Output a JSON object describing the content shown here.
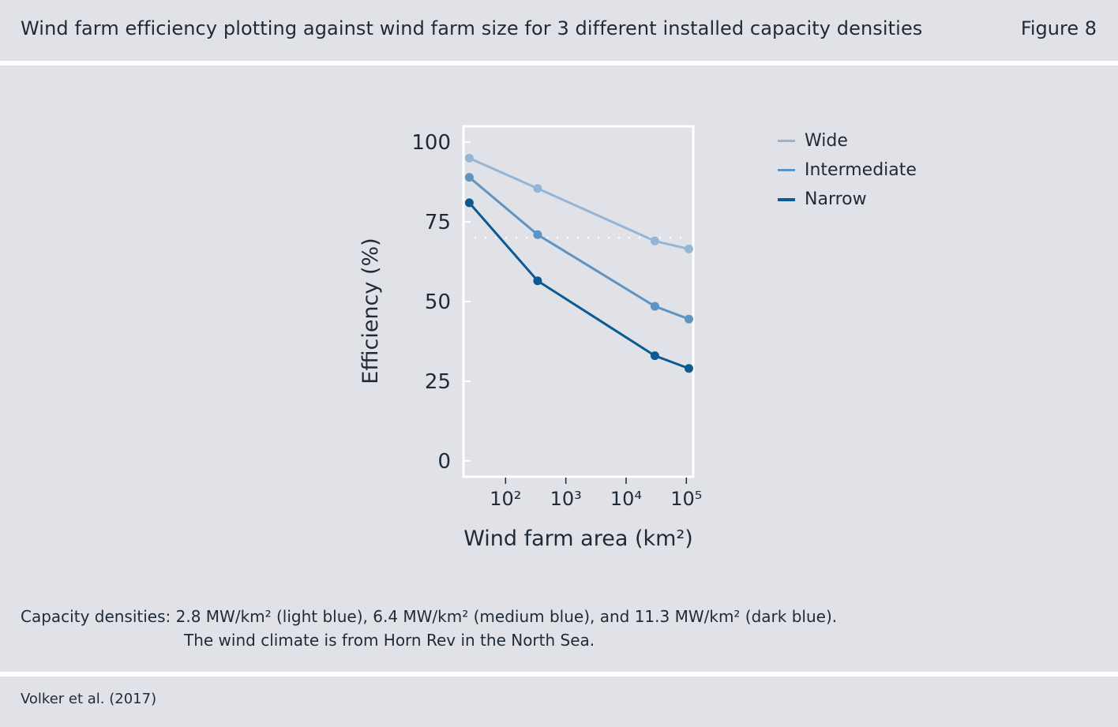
{
  "header": {
    "title": "Wind farm efficiency plotting against wind farm size for 3 different installed capacity densities",
    "figure_label": "Figure 8"
  },
  "caption": {
    "line1": "Capacity densities: 2.8 MW/km² (light blue), 6.4 MW/km² (medium blue), and 11.3 MW/km² (dark blue).",
    "line2": "The wind climate is from Horn Rev in the North Sea."
  },
  "source": "Volker et al. (2017)",
  "chart_data": {
    "type": "line",
    "xlabel": "Wind farm area (km²)",
    "ylabel": "Efficiency (%)",
    "x_scale": "log",
    "xlim": [
      20,
      130000
    ],
    "ylim": [
      -5,
      105
    ],
    "x_ticks": [
      {
        "value": 100,
        "label": "10²"
      },
      {
        "value": 1000,
        "label": "10³"
      },
      {
        "value": 10000,
        "label": "10⁴"
      },
      {
        "value": 100000,
        "label": "10⁵"
      }
    ],
    "y_ticks": [
      0,
      25,
      50,
      75,
      100
    ],
    "reference_line": {
      "y": 70,
      "style": "dotted"
    },
    "grid": false,
    "legend_position": "right",
    "series": [
      {
        "name": "Wide",
        "color": "#95b5d6",
        "x": [
          25,
          340,
          30000,
          110000
        ],
        "y": [
          95,
          85.5,
          69,
          66.5
        ]
      },
      {
        "name": "Intermediate",
        "color": "#5f93c2",
        "x": [
          25,
          340,
          30000,
          110000
        ],
        "y": [
          89,
          71,
          48.5,
          44.5
        ]
      },
      {
        "name": "Narrow",
        "color": "#0b5a93",
        "x": [
          25,
          340,
          30000,
          110000
        ],
        "y": [
          81,
          56.5,
          33,
          29
        ]
      }
    ]
  }
}
